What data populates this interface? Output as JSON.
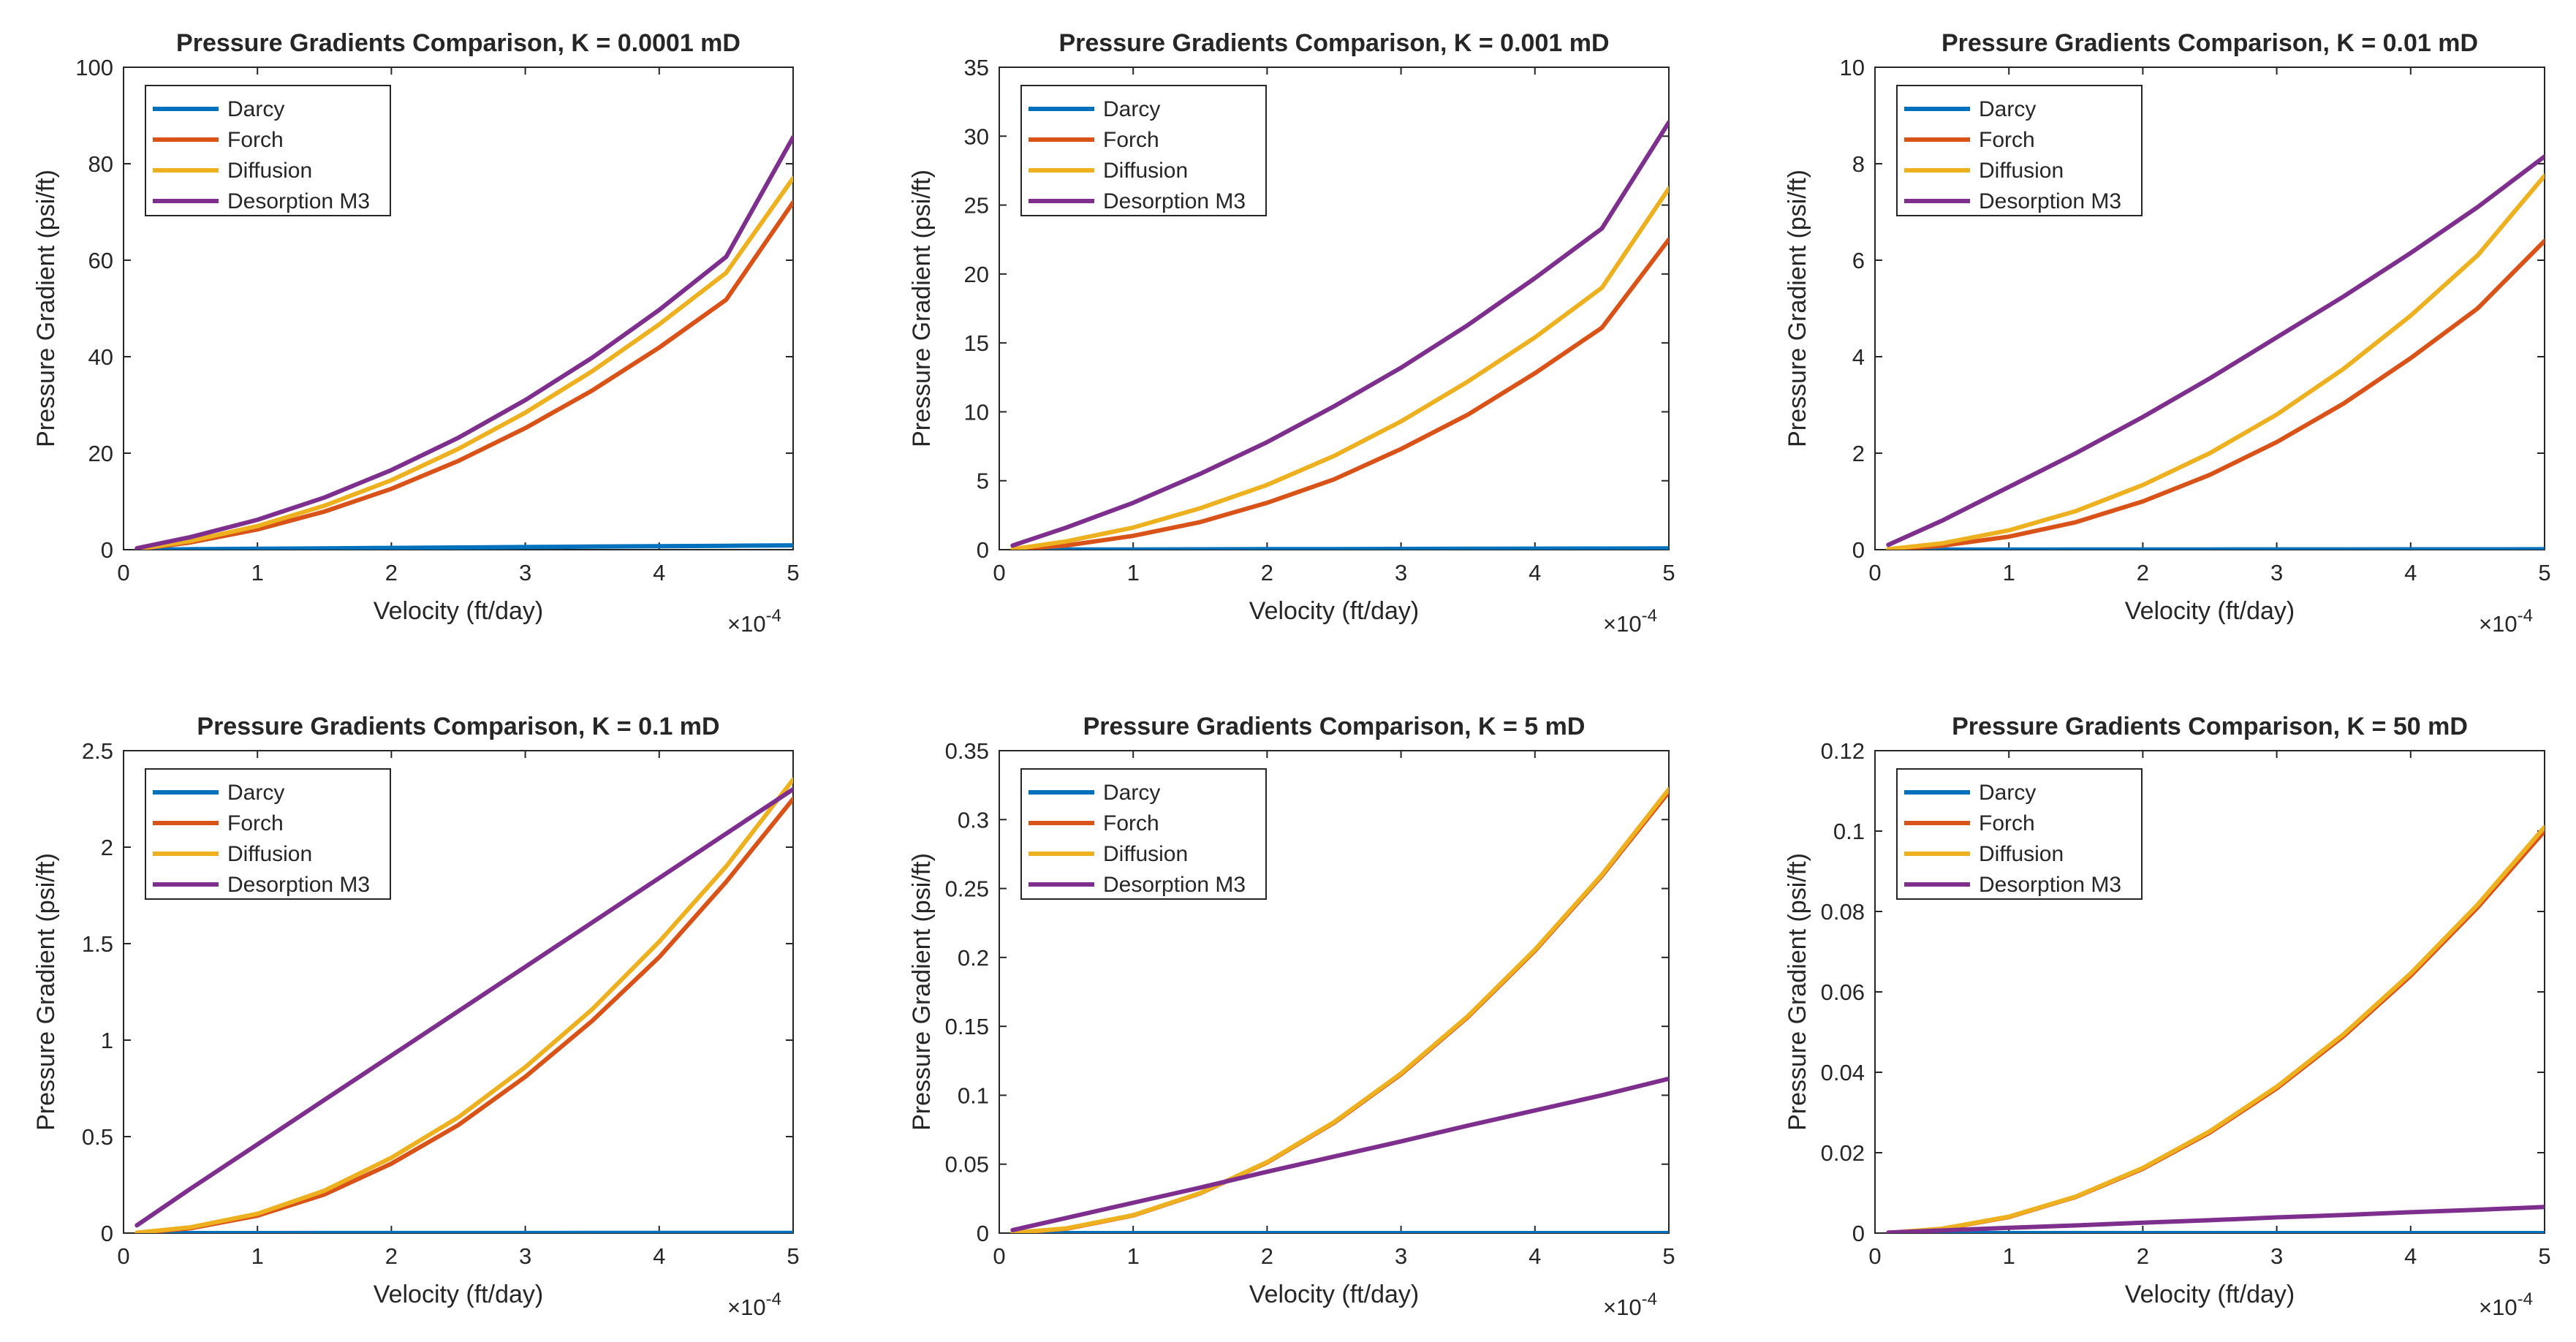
{
  "figure": {
    "legend_entries": [
      "Darcy",
      "Forch",
      "Diffusion",
      "Desorption M3"
    ],
    "series_colors": [
      "#0072BD",
      "#D95319",
      "#EDB120",
      "#7E2F8E"
    ]
  },
  "chart_data": [
    {
      "type": "line",
      "title": "Pressure Gradients Comparison, K = 0.0001 mD",
      "xlabel": "Velocity (ft/day)",
      "ylabel": "Pressure Gradient (psi/ft)",
      "x_exponent": "×10",
      "x_exponent_power": "-4",
      "xlim": [
        0,
        5
      ],
      "ylim": [
        0,
        100
      ],
      "xticks": [
        0,
        1,
        2,
        3,
        4,
        5
      ],
      "yticks": [
        0,
        20,
        40,
        60,
        80,
        100
      ],
      "ytick_labels": [
        "0",
        "20",
        "40",
        "60",
        "80",
        "100"
      ],
      "legend_position": "top-left",
      "grid": false,
      "x": [
        0.1,
        0.5,
        1.0,
        1.5,
        2.0,
        2.5,
        3.0,
        3.5,
        4.0,
        4.5,
        5.0
      ],
      "series": [
        {
          "name": "Darcy",
          "values": [
            0.02,
            0.09,
            0.18,
            0.27,
            0.36,
            0.45,
            0.54,
            0.63,
            0.72,
            0.81,
            0.9
          ]
        },
        {
          "name": "Forch",
          "values": [
            0.1,
            1.5,
            4.2,
            7.9,
            12.6,
            18.4,
            25.2,
            33.0,
            41.9,
            51.8,
            72.0
          ]
        },
        {
          "name": "Diffusion",
          "values": [
            0.1,
            1.8,
            4.9,
            9.1,
            14.4,
            20.9,
            28.4,
            37.0,
            46.7,
            57.4,
            77.0
          ]
        },
        {
          "name": "Desorption M3",
          "values": [
            0.3,
            2.6,
            6.2,
            10.8,
            16.5,
            23.2,
            31.0,
            39.8,
            49.7,
            60.7,
            85.5
          ]
        }
      ]
    },
    {
      "type": "line",
      "title": "Pressure Gradients Comparison, K = 0.001 mD",
      "xlabel": "Velocity (ft/day)",
      "ylabel": "Pressure Gradient (psi/ft)",
      "x_exponent": "×10",
      "x_exponent_power": "-4",
      "xlim": [
        0,
        5
      ],
      "ylim": [
        0,
        35
      ],
      "xticks": [
        0,
        1,
        2,
        3,
        4,
        5
      ],
      "yticks": [
        0,
        5,
        10,
        15,
        20,
        25,
        30,
        35
      ],
      "ytick_labels": [
        "0",
        "5",
        "10",
        "15",
        "20",
        "25",
        "30",
        "35"
      ],
      "legend_position": "top-left",
      "grid": false,
      "x": [
        0.1,
        0.5,
        1.0,
        1.5,
        2.0,
        2.5,
        3.0,
        3.5,
        4.0,
        4.5,
        5.0
      ],
      "series": [
        {
          "name": "Darcy",
          "values": [
            0.002,
            0.009,
            0.018,
            0.027,
            0.036,
            0.045,
            0.054,
            0.063,
            0.072,
            0.081,
            0.09
          ]
        },
        {
          "name": "Forch",
          "values": [
            0.02,
            0.3,
            1.0,
            2.0,
            3.4,
            5.1,
            7.3,
            9.8,
            12.8,
            16.1,
            22.5
          ]
        },
        {
          "name": "Diffusion",
          "values": [
            0.03,
            0.6,
            1.6,
            3.0,
            4.7,
            6.8,
            9.3,
            12.2,
            15.4,
            19.0,
            26.2
          ]
        },
        {
          "name": "Desorption M3",
          "values": [
            0.3,
            1.6,
            3.4,
            5.5,
            7.8,
            10.4,
            13.2,
            16.3,
            19.7,
            23.3,
            31.0
          ]
        }
      ]
    },
    {
      "type": "line",
      "title": "Pressure Gradients Comparison, K = 0.01 mD",
      "xlabel": "Velocity (ft/day)",
      "ylabel": "Pressure Gradient (psi/ft)",
      "x_exponent": "×10",
      "x_exponent_power": "-4",
      "xlim": [
        0,
        5
      ],
      "ylim": [
        0,
        10
      ],
      "xticks": [
        0,
        1,
        2,
        3,
        4,
        5
      ],
      "yticks": [
        0,
        2,
        4,
        6,
        8,
        10
      ],
      "ytick_labels": [
        "0",
        "2",
        "4",
        "6",
        "8",
        "10"
      ],
      "legend_position": "top-left",
      "grid": false,
      "x": [
        0.1,
        0.5,
        1.0,
        1.5,
        2.0,
        2.5,
        3.0,
        3.5,
        4.0,
        4.5,
        5.0
      ],
      "series": [
        {
          "name": "Darcy",
          "values": [
            0.0002,
            0.0009,
            0.0018,
            0.0027,
            0.0036,
            0.0045,
            0.0054,
            0.0063,
            0.0072,
            0.0081,
            0.009
          ]
        },
        {
          "name": "Forch",
          "values": [
            0.005,
            0.08,
            0.27,
            0.57,
            1.0,
            1.55,
            2.23,
            3.03,
            3.97,
            5.0,
            6.4
          ]
        },
        {
          "name": "Diffusion",
          "values": [
            0.01,
            0.13,
            0.4,
            0.8,
            1.34,
            2.0,
            2.8,
            3.75,
            4.85,
            6.1,
            7.75
          ]
        },
        {
          "name": "Desorption M3",
          "values": [
            0.1,
            0.6,
            1.3,
            2.0,
            2.75,
            3.55,
            4.4,
            5.25,
            6.15,
            7.1,
            8.15
          ]
        }
      ]
    },
    {
      "type": "line",
      "title": "Pressure Gradients Comparison, K = 0.1 mD",
      "xlabel": "Velocity (ft/day)",
      "ylabel": "Pressure Gradient (psi/ft)",
      "x_exponent": "×10",
      "x_exponent_power": "-4",
      "xlim": [
        0,
        5
      ],
      "ylim": [
        0,
        2.5
      ],
      "xticks": [
        0,
        1,
        2,
        3,
        4,
        5
      ],
      "yticks": [
        0,
        0.5,
        1,
        1.5,
        2,
        2.5
      ],
      "ytick_labels": [
        "0",
        "0.5",
        "1",
        "1.5",
        "2",
        "2.5"
      ],
      "legend_position": "top-left",
      "grid": false,
      "x": [
        0.1,
        0.5,
        1.0,
        1.5,
        2.0,
        2.5,
        3.0,
        3.5,
        4.0,
        4.5,
        5.0
      ],
      "series": [
        {
          "name": "Darcy",
          "values": [
            2e-05,
            9e-05,
            0.00018,
            0.00027,
            0.00036,
            0.00045,
            0.00054,
            0.00063,
            0.00072,
            0.00081,
            0.0009
          ]
        },
        {
          "name": "Forch",
          "values": [
            0.001,
            0.025,
            0.09,
            0.2,
            0.36,
            0.56,
            0.81,
            1.1,
            1.43,
            1.82,
            2.25
          ]
        },
        {
          "name": "Diffusion",
          "values": [
            0.002,
            0.03,
            0.1,
            0.22,
            0.39,
            0.6,
            0.86,
            1.16,
            1.51,
            1.9,
            2.35
          ]
        },
        {
          "name": "Desorption M3",
          "values": [
            0.04,
            0.23,
            0.46,
            0.69,
            0.92,
            1.15,
            1.38,
            1.61,
            1.84,
            2.07,
            2.3
          ]
        }
      ]
    },
    {
      "type": "line",
      "title": "Pressure Gradients Comparison, K = 5 mD",
      "xlabel": "Velocity (ft/day)",
      "ylabel": "Pressure Gradient (psi/ft)",
      "x_exponent": "×10",
      "x_exponent_power": "-4",
      "xlim": [
        0,
        5
      ],
      "ylim": [
        0,
        0.35
      ],
      "xticks": [
        0,
        1,
        2,
        3,
        4,
        5
      ],
      "yticks": [
        0,
        0.05,
        0.1,
        0.15,
        0.2,
        0.25,
        0.3,
        0.35
      ],
      "ytick_labels": [
        "0",
        "0.05",
        "0.1",
        "0.15",
        "0.2",
        "0.25",
        "0.3",
        "0.35"
      ],
      "legend_position": "top-left",
      "grid": false,
      "x": [
        0.1,
        0.5,
        1.0,
        1.5,
        2.0,
        2.5,
        3.0,
        3.5,
        4.0,
        4.5,
        5.0
      ],
      "series": [
        {
          "name": "Darcy",
          "values": [
            4e-07,
            2e-06,
            3.6e-06,
            5.4e-06,
            7.2e-06,
            9e-06,
            1.08e-05,
            1.26e-05,
            1.44e-05,
            1.62e-05,
            1.8e-05
          ]
        },
        {
          "name": "Forch",
          "values": [
            0.0001,
            0.0032,
            0.0128,
            0.0288,
            0.0512,
            0.08,
            0.1152,
            0.1568,
            0.2048,
            0.2592,
            0.32
          ]
        },
        {
          "name": "Diffusion",
          "values": [
            0.0002,
            0.0034,
            0.013,
            0.029,
            0.0515,
            0.0805,
            0.1158,
            0.1575,
            0.2056,
            0.26,
            0.322
          ]
        },
        {
          "name": "Desorption M3",
          "values": [
            0.0022,
            0.011,
            0.022,
            0.033,
            0.0445,
            0.0555,
            0.0665,
            0.078,
            0.089,
            0.1,
            0.112
          ]
        }
      ]
    },
    {
      "type": "line",
      "title": "Pressure Gradients Comparison, K = 50 mD",
      "xlabel": "Velocity (ft/day)",
      "ylabel": "Pressure Gradient (psi/ft)",
      "x_exponent": "×10",
      "x_exponent_power": "-4",
      "xlim": [
        0,
        5
      ],
      "ylim": [
        0,
        0.12
      ],
      "xticks": [
        0,
        1,
        2,
        3,
        4,
        5
      ],
      "yticks": [
        0,
        0.02,
        0.04,
        0.06,
        0.08,
        0.1,
        0.12
      ],
      "ytick_labels": [
        "0",
        "0.02",
        "0.04",
        "0.06",
        "0.08",
        "0.1",
        "0.12"
      ],
      "legend_position": "top-left",
      "grid": false,
      "x": [
        0.1,
        0.5,
        1.0,
        1.5,
        2.0,
        2.5,
        3.0,
        3.5,
        4.0,
        4.5,
        5.0
      ],
      "series": [
        {
          "name": "Darcy",
          "values": [
            4e-08,
            2e-07,
            3.6e-07,
            5.4e-07,
            7.2e-07,
            9e-07,
            1.08e-06,
            1.26e-06,
            1.44e-06,
            1.62e-06,
            1.8e-06
          ]
        },
        {
          "name": "Forch",
          "values": [
            4e-05,
            0.001,
            0.004,
            0.009,
            0.016,
            0.025,
            0.036,
            0.049,
            0.064,
            0.081,
            0.1
          ]
        },
        {
          "name": "Diffusion",
          "values": [
            5e-05,
            0.0011,
            0.0041,
            0.0091,
            0.0162,
            0.0253,
            0.0364,
            0.0495,
            0.0646,
            0.0817,
            0.101
          ]
        },
        {
          "name": "Desorption M3",
          "values": [
            0.00013,
            0.00065,
            0.0013,
            0.0019,
            0.0026,
            0.0032,
            0.0039,
            0.0045,
            0.0052,
            0.0058,
            0.0065
          ]
        }
      ]
    }
  ]
}
